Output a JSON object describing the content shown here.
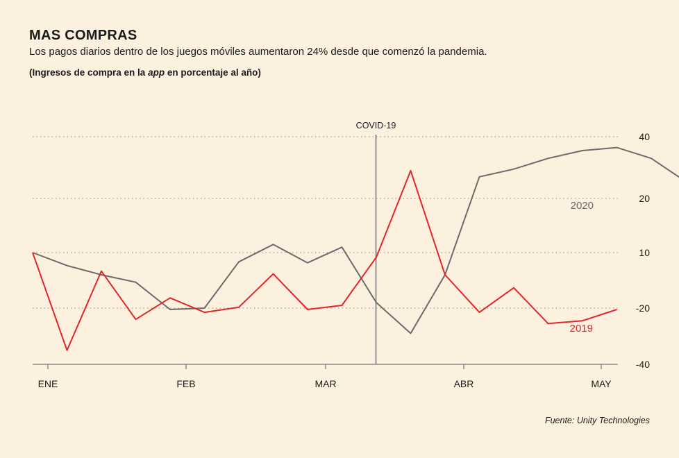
{
  "header": {
    "title": "MAS COMPRAS",
    "subtitle": "Los pagos diarios dentro de los juegos móviles aumentaron 24% desde que comenzó la pandemia.",
    "units_prefix": "(Ingresos de compra en la ",
    "units_emph": "app",
    "units_suffix": " en porcentaje al año)"
  },
  "footer": {
    "source": "Fuente: Unity Technologies"
  },
  "chart_data": {
    "type": "line",
    "title": "MAS COMPRAS",
    "x_tick_labels": [
      "ENE",
      "FEB",
      "MAR",
      "ABR",
      "MAY"
    ],
    "y_ticks": [
      40,
      20,
      10,
      -20,
      -40
    ],
    "ylim": [
      -40,
      40
    ],
    "grid": "horizontal dotted",
    "annotation": {
      "label": "COVID-19",
      "x_index": 10
    },
    "series": [
      {
        "name": "2020",
        "color": "#6b6b6b",
        "values": [
          10,
          3,
          -2,
          -6,
          -20.5,
          -20,
          5,
          11.5,
          4.5,
          11,
          -17,
          -29,
          -2,
          27,
          29.5,
          33,
          35.5,
          36.5,
          33,
          25.5
        ]
      },
      {
        "name": "2019",
        "color": "#e0262b",
        "values": [
          10,
          -35,
          0,
          -24,
          -14.5,
          -21.5,
          -19.5,
          -1.5,
          -20.5,
          -18.5,
          7.5,
          29,
          -2,
          -21.5,
          -9,
          -25.5,
          -24.5,
          -20.5
        ]
      }
    ]
  }
}
